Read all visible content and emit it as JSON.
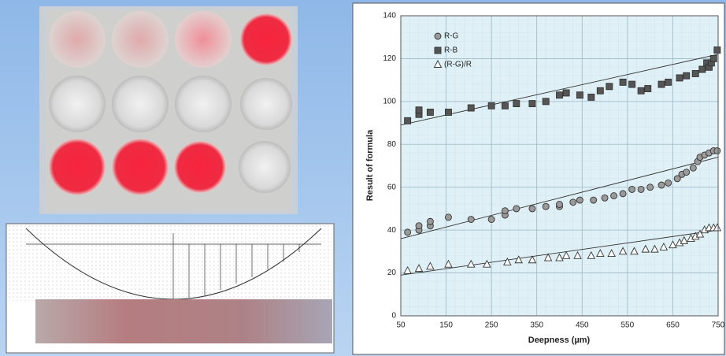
{
  "chart_data": {
    "type": "scatter",
    "x_label": "Deepness (µm)",
    "y_label": "Result of formula",
    "xlim": [
      50,
      750
    ],
    "xticks": [
      50,
      150,
      250,
      350,
      450,
      550,
      650,
      750
    ],
    "ylim": [
      0,
      140
    ],
    "yticks": [
      0,
      20,
      40,
      60,
      80,
      100,
      120,
      140
    ],
    "grid": true,
    "legend": "upper left",
    "series": [
      {
        "name": "R-G",
        "color": "#9a9a9a",
        "marker": "circle",
        "x": [
          65,
          90,
          90,
          115,
          115,
          155,
          205,
          250,
          280,
          280,
          305,
          340,
          370,
          400,
          400,
          430,
          445,
          475,
          500,
          520,
          540,
          560,
          580,
          600,
          625,
          640,
          660,
          670,
          680,
          695,
          705,
          710,
          720,
          730,
          740,
          748
        ],
        "values": [
          39,
          40,
          42,
          42,
          44,
          46,
          45,
          45,
          47,
          49,
          50,
          50,
          51,
          51,
          52,
          53,
          54,
          54,
          55,
          56,
          57,
          59,
          59,
          60,
          61,
          62,
          64,
          66,
          67,
          69,
          72,
          74,
          75,
          76,
          77,
          77
        ],
        "trend": [
          36,
          74
        ]
      },
      {
        "name": "R-B",
        "color": "#555555",
        "marker": "square",
        "x": [
          65,
          90,
          90,
          115,
          155,
          205,
          250,
          280,
          305,
          340,
          370,
          400,
          415,
          445,
          470,
          490,
          510,
          540,
          560,
          580,
          595,
          625,
          640,
          665,
          680,
          700,
          715,
          725,
          730,
          735,
          740,
          748
        ],
        "values": [
          91,
          94,
          96,
          95,
          95,
          97,
          98,
          98,
          99,
          99,
          100,
          103,
          104,
          103,
          102,
          105,
          107,
          109,
          108,
          105,
          106,
          108,
          109,
          111,
          112,
          113,
          115,
          118,
          116,
          118,
          120,
          124
        ],
        "trend": [
          89,
          122
        ]
      },
      {
        "name": "(R-G)/R",
        "color": "#ffffff",
        "marker": "triangle",
        "x": [
          65,
          90,
          115,
          155,
          205,
          240,
          285,
          310,
          340,
          375,
          400,
          415,
          440,
          470,
          490,
          515,
          540,
          565,
          590,
          610,
          630,
          650,
          665,
          675,
          690,
          700,
          710,
          720,
          730,
          740,
          748
        ],
        "values": [
          21,
          22,
          23,
          24,
          24,
          24,
          25,
          26,
          26,
          27,
          27,
          28,
          28,
          28,
          29,
          29,
          30,
          30,
          31,
          31,
          32,
          33,
          34,
          35,
          36,
          37,
          38,
          40,
          41,
          41,
          41
        ],
        "trend": [
          19,
          40
        ]
      }
    ]
  }
}
